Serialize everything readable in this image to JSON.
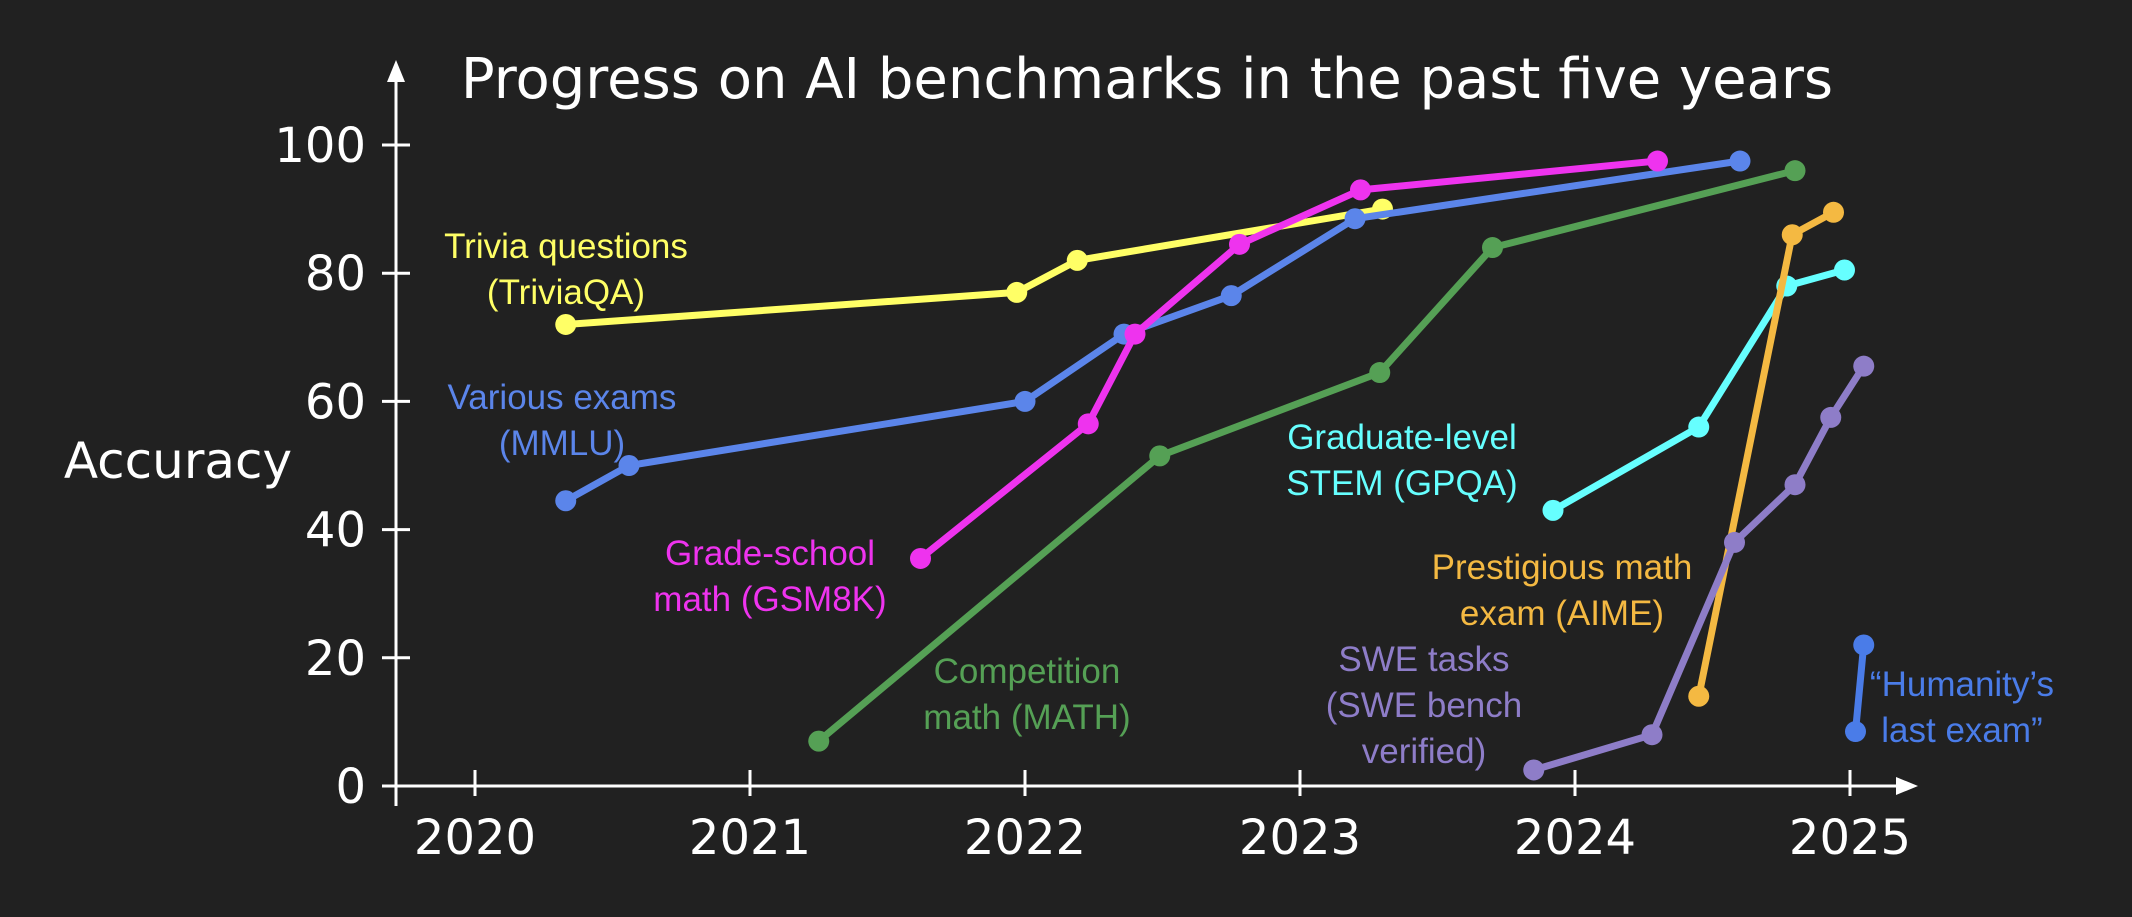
{
  "chart_data": {
    "type": "line",
    "title": "Progress on AI benchmarks in the past five years",
    "xlabel": "",
    "ylabel": "Accuracy",
    "xlim": [
      2019.7,
      2025.25
    ],
    "ylim": [
      0,
      100
    ],
    "xticks": [
      "2020",
      "2021",
      "2022",
      "2023",
      "2024",
      "2025"
    ],
    "yticks": [
      "0",
      "20",
      "40",
      "60",
      "80",
      "100"
    ],
    "grid": false,
    "legend": "inline labels",
    "series": [
      {
        "label_lines": [
          "Trivia questions",
          "(TriviaQA)"
        ],
        "color": "#FFFF66",
        "points": [
          [
            2020.33,
            72
          ],
          [
            2021.97,
            77
          ],
          [
            2022.19,
            82
          ],
          [
            2023.3,
            90
          ]
        ]
      },
      {
        "label_lines": [
          "Various exams",
          "(MMLU)"
        ],
        "color": "#5B85EA",
        "points": [
          [
            2020.33,
            44.5
          ],
          [
            2020.56,
            50
          ],
          [
            2022.0,
            60
          ],
          [
            2022.36,
            70.5
          ],
          [
            2022.75,
            76.5
          ],
          [
            2023.2,
            88.5
          ],
          [
            2024.6,
            97.5
          ]
        ]
      },
      {
        "label_lines": [
          "Grade-school",
          "math (GSM8K)"
        ],
        "color": "#EE33EE",
        "points": [
          [
            2021.62,
            35.5
          ],
          [
            2022.23,
            56.5
          ],
          [
            2022.4,
            70.5
          ],
          [
            2022.78,
            84.5
          ],
          [
            2023.22,
            93
          ],
          [
            2024.3,
            97.5
          ]
        ]
      },
      {
        "label_lines": [
          "Competition",
          "math (MATH)"
        ],
        "color": "#55A055",
        "points": [
          [
            2021.25,
            7
          ],
          [
            2022.49,
            51.5
          ],
          [
            2023.29,
            64.5
          ],
          [
            2023.7,
            84
          ],
          [
            2024.8,
            96
          ]
        ]
      },
      {
        "label_lines": [
          "Graduate-level",
          "STEM (GPQA)"
        ],
        "color": "#66FFFF",
        "points": [
          [
            2023.92,
            43
          ],
          [
            2024.45,
            56
          ],
          [
            2024.77,
            78
          ],
          [
            2024.98,
            80.5
          ]
        ]
      },
      {
        "label_lines": [
          "Prestigious math",
          "exam (AIME)"
        ],
        "color": "#F4B942",
        "points": [
          [
            2024.45,
            14
          ],
          [
            2024.79,
            86
          ],
          [
            2024.94,
            89.5
          ]
        ]
      },
      {
        "label_lines": [
          "SWE tasks",
          "(SWE bench",
          "verified)"
        ],
        "color": "#8E7DC8",
        "points": [
          [
            2023.85,
            2.5
          ],
          [
            2024.28,
            8
          ],
          [
            2024.58,
            38
          ],
          [
            2024.8,
            47
          ],
          [
            2024.93,
            57.5
          ],
          [
            2025.05,
            65.5
          ]
        ]
      },
      {
        "label_lines": [
          "“Humanity’s",
          "last exam”"
        ],
        "color": "#4A7CE8",
        "points": [
          [
            2025.02,
            8.5
          ],
          [
            2025.05,
            22
          ]
        ]
      }
    ]
  }
}
